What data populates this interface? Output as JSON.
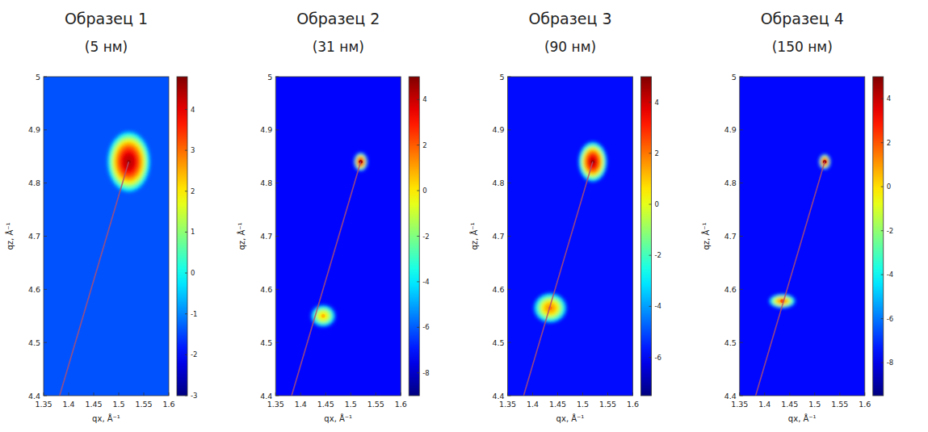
{
  "chart_data": [
    {
      "type": "scatter",
      "title": "Образец 1",
      "subtitle": "(5 нм)",
      "x_label": "qx, Å⁻¹",
      "y_label": "qz, Å⁻¹",
      "xlim": [
        1.35,
        1.6
      ],
      "ylim": [
        4.4,
        5
      ],
      "xticks": [
        1.35,
        1.4,
        1.45,
        1.5,
        1.55,
        1.6
      ],
      "yticks": [
        4.4,
        4.5,
        4.6,
        4.7,
        4.8,
        4.9,
        5
      ],
      "colorbar_lim": [
        -3,
        4.8
      ],
      "colorbar_ticks": [
        -3,
        -2,
        -1,
        0,
        1,
        2,
        3,
        4
      ],
      "background": -1.4,
      "series": [
        {
          "type": "scatter",
          "x": [
            1.52
          ],
          "values": [
            4.84
          ],
          "intensity": [
            4.6
          ],
          "widths_x": [
            0.045
          ],
          "widths_z": [
            0.06
          ]
        },
        {
          "type": "line",
          "color": "#b0506e",
          "x": [
            1.382,
            1.52
          ],
          "values": [
            4.4,
            4.84
          ]
        }
      ]
    },
    {
      "type": "scatter",
      "title": "Образец 2",
      "subtitle": "(31 нм)",
      "x_label": "qx, Å⁻¹",
      "y_label": "qz, Å⁻¹",
      "xlim": [
        1.35,
        1.6
      ],
      "ylim": [
        4.4,
        5
      ],
      "xticks": [
        1.35,
        1.4,
        1.45,
        1.5,
        1.55,
        1.6
      ],
      "yticks": [
        4.4,
        4.5,
        4.6,
        4.7,
        4.8,
        4.9,
        5
      ],
      "colorbar_lim": [
        -9,
        5
      ],
      "colorbar_ticks": [
        -8,
        -6,
        -4,
        -2,
        0,
        2,
        4
      ],
      "background": -7.2,
      "series": [
        {
          "type": "scatter",
          "x": [
            1.52,
            1.445
          ],
          "values": [
            4.84,
            4.55
          ],
          "intensity": [
            4.6,
            0.6
          ],
          "widths_x": [
            0.014,
            0.026
          ],
          "widths_z": [
            0.018,
            0.022
          ]
        },
        {
          "type": "line",
          "color": "#b0506e",
          "x": [
            1.382,
            1.52
          ],
          "values": [
            4.4,
            4.84
          ]
        }
      ]
    },
    {
      "type": "scatter",
      "title": "Образец 3",
      "subtitle": "(90 нм)",
      "x_label": "qx, Å⁻¹",
      "y_label": "qz, Å⁻¹",
      "xlim": [
        1.35,
        1.6
      ],
      "ylim": [
        4.4,
        5
      ],
      "xticks": [
        1.35,
        1.4,
        1.45,
        1.5,
        1.55,
        1.6
      ],
      "yticks": [
        4.4,
        4.5,
        4.6,
        4.7,
        4.8,
        4.9,
        5
      ],
      "colorbar_lim": [
        -7.5,
        5
      ],
      "colorbar_ticks": [
        -6,
        -4,
        -2,
        0,
        2,
        4
      ],
      "background": -5.8,
      "series": [
        {
          "type": "scatter",
          "x": [
            1.52,
            1.435
          ],
          "values": [
            4.84,
            4.565
          ],
          "intensity": [
            4.6,
            2
          ],
          "widths_x": [
            0.03,
            0.035
          ],
          "widths_z": [
            0.04,
            0.03
          ]
        },
        {
          "type": "line",
          "color": "#b0506e",
          "x": [
            1.382,
            1.52
          ],
          "values": [
            4.4,
            4.84
          ]
        }
      ]
    },
    {
      "type": "scatter",
      "title": "Образец 4",
      "subtitle": "(150 нм)",
      "x_label": "qx, Å⁻¹",
      "y_label": "qz, Å⁻¹",
      "xlim": [
        1.35,
        1.6
      ],
      "ylim": [
        4.4,
        5
      ],
      "xticks": [
        1.35,
        1.4,
        1.45,
        1.5,
        1.55,
        1.6
      ],
      "yticks": [
        4.4,
        4.5,
        4.6,
        4.7,
        4.8,
        4.9,
        5
      ],
      "colorbar_lim": [
        -9.5,
        5
      ],
      "colorbar_ticks": [
        -8,
        -6,
        -4,
        -2,
        0,
        2,
        4
      ],
      "background": -7.6,
      "series": [
        {
          "type": "scatter",
          "x": [
            1.52,
            1.435
          ],
          "values": [
            4.84,
            4.578
          ],
          "intensity": [
            4.6,
            2
          ],
          "widths_x": [
            0.012,
            0.028
          ],
          "widths_z": [
            0.015,
            0.014
          ]
        },
        {
          "type": "line",
          "color": "#b0506e",
          "x": [
            1.382,
            1.52
          ],
          "values": [
            4.4,
            4.84
          ]
        }
      ]
    }
  ]
}
